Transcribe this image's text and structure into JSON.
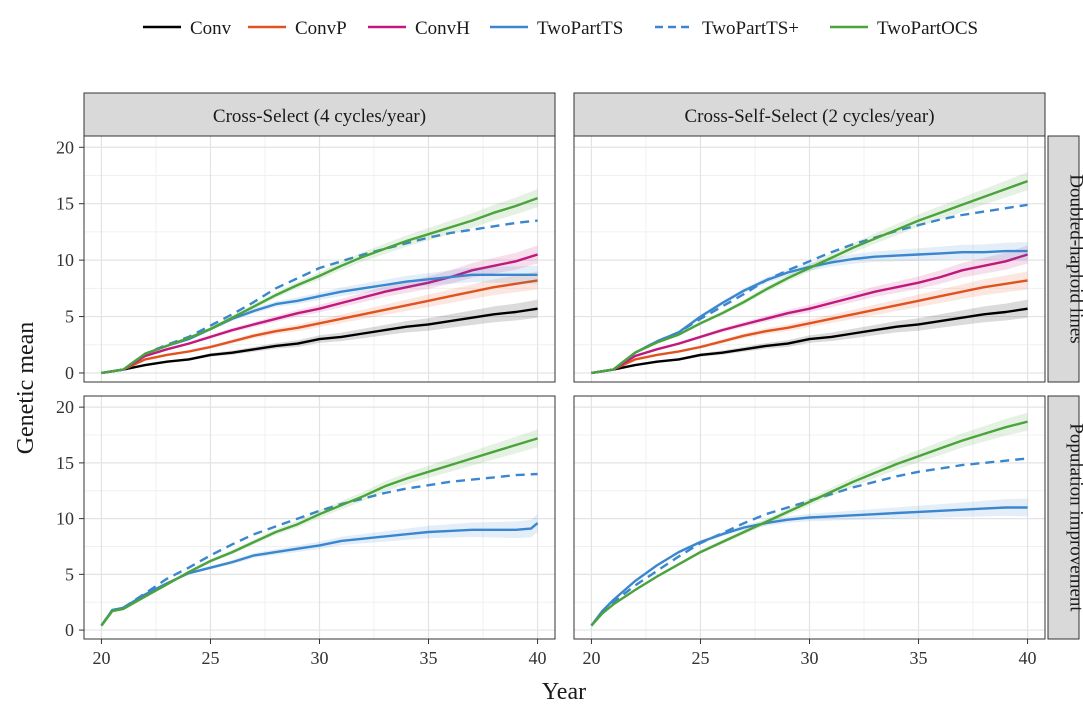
{
  "chart_data": {
    "type": "line",
    "xlabel": "Year",
    "ylabel": "Genetic mean",
    "xlim": [
      19.2,
      40.8
    ],
    "ylim": [
      -0.8,
      21
    ],
    "xticks": [
      20,
      25,
      30,
      35,
      40
    ],
    "yticks": [
      0,
      5,
      10,
      15,
      20
    ],
    "grid": true,
    "legend_position": "top",
    "columns": [
      "Cross-Select (4 cycles/year)",
      "Cross-Self-Select (2 cycles/year)"
    ],
    "rows": [
      "Doubled-haploid lines",
      "Population improvement"
    ],
    "series_styles": [
      {
        "name": "Conv",
        "color": "#000000",
        "dash": "solid"
      },
      {
        "name": "ConvP",
        "color": "#e0521f",
        "dash": "solid"
      },
      {
        "name": "ConvH",
        "color": "#c2187d",
        "dash": "solid"
      },
      {
        "name": "TwoPartTS",
        "color": "#3a86cf",
        "dash": "solid"
      },
      {
        "name": "TwoPartTS+",
        "color": "#3a86cf",
        "dash": "dashed"
      },
      {
        "name": "TwoPartOCS",
        "color": "#4aa33b",
        "dash": "solid"
      }
    ],
    "panels": [
      {
        "column": "Cross-Select (4 cycles/year)",
        "row": "Doubled-haploid lines",
        "series": [
          {
            "name": "Conv",
            "x": [
              20,
              21,
              22,
              23,
              24,
              25,
              26,
              27,
              28,
              29,
              30,
              31,
              32,
              33,
              34,
              35,
              36,
              37,
              38,
              39,
              40
            ],
            "y": [
              0,
              0.3,
              0.7,
              1.0,
              1.2,
              1.6,
              1.8,
              2.1,
              2.4,
              2.6,
              3.0,
              3.2,
              3.5,
              3.8,
              4.1,
              4.3,
              4.6,
              4.9,
              5.2,
              5.4,
              5.7
            ]
          },
          {
            "name": "ConvP",
            "x": [
              20,
              21,
              22,
              23,
              24,
              25,
              26,
              27,
              28,
              29,
              30,
              31,
              32,
              33,
              34,
              35,
              36,
              37,
              38,
              39,
              40
            ],
            "y": [
              0,
              0.3,
              1.2,
              1.6,
              1.9,
              2.3,
              2.8,
              3.3,
              3.7,
              4.0,
              4.4,
              4.8,
              5.2,
              5.6,
              6.0,
              6.4,
              6.8,
              7.2,
              7.6,
              7.9,
              8.2
            ]
          },
          {
            "name": "ConvH",
            "x": [
              20,
              21,
              22,
              23,
              24,
              25,
              26,
              27,
              28,
              29,
              30,
              31,
              32,
              33,
              34,
              35,
              36,
              37,
              38,
              39,
              40
            ],
            "y": [
              0,
              0.3,
              1.5,
              2.1,
              2.6,
              3.2,
              3.8,
              4.3,
              4.8,
              5.3,
              5.7,
              6.2,
              6.7,
              7.2,
              7.6,
              8.0,
              8.5,
              9.1,
              9.5,
              9.9,
              10.5
            ]
          },
          {
            "name": "TwoPartTS",
            "x": [
              20,
              21,
              22,
              23,
              24,
              25,
              26,
              27,
              28,
              29,
              30,
              31,
              32,
              33,
              34,
              35,
              36,
              37,
              38,
              39,
              40
            ],
            "y": [
              0,
              0.3,
              1.7,
              2.4,
              3.0,
              3.9,
              4.8,
              5.5,
              6.1,
              6.4,
              6.8,
              7.2,
              7.5,
              7.8,
              8.1,
              8.3,
              8.5,
              8.7,
              8.7,
              8.7,
              8.7
            ]
          },
          {
            "name": "TwoPartTS+",
            "x": [
              20,
              21,
              22,
              23,
              24,
              25,
              26,
              27,
              28,
              29,
              30,
              31,
              32,
              33,
              34,
              35,
              36,
              37,
              38,
              39,
              40
            ],
            "y": [
              0,
              0.3,
              1.7,
              2.5,
              3.2,
              4.2,
              5.2,
              6.3,
              7.5,
              8.4,
              9.3,
              9.9,
              10.5,
              11.0,
              11.5,
              12.0,
              12.4,
              12.7,
              13.0,
              13.3,
              13.5
            ]
          },
          {
            "name": "TwoPartOCS",
            "x": [
              20,
              21,
              22,
              23,
              24,
              25,
              26,
              27,
              28,
              29,
              30,
              31,
              32,
              33,
              34,
              35,
              36,
              37,
              38,
              39,
              40
            ],
            "y": [
              0,
              0.3,
              1.7,
              2.4,
              3.1,
              3.9,
              4.9,
              5.9,
              6.9,
              7.8,
              8.6,
              9.5,
              10.3,
              11.0,
              11.7,
              12.3,
              12.9,
              13.5,
              14.2,
              14.8,
              15.5
            ]
          }
        ]
      },
      {
        "column": "Cross-Self-Select (2 cycles/year)",
        "row": "Doubled-haploid lines",
        "series": [
          {
            "name": "Conv",
            "x": [
              20,
              21,
              22,
              23,
              24,
              25,
              26,
              27,
              28,
              29,
              30,
              31,
              32,
              33,
              34,
              35,
              36,
              37,
              38,
              39,
              40
            ],
            "y": [
              0,
              0.3,
              0.7,
              1.0,
              1.2,
              1.6,
              1.8,
              2.1,
              2.4,
              2.6,
              3.0,
              3.2,
              3.5,
              3.8,
              4.1,
              4.3,
              4.6,
              4.9,
              5.2,
              5.4,
              5.7
            ]
          },
          {
            "name": "ConvP",
            "x": [
              20,
              21,
              22,
              23,
              24,
              25,
              26,
              27,
              28,
              29,
              30,
              31,
              32,
              33,
              34,
              35,
              36,
              37,
              38,
              39,
              40
            ],
            "y": [
              0,
              0.3,
              1.2,
              1.6,
              1.9,
              2.3,
              2.8,
              3.3,
              3.7,
              4.0,
              4.4,
              4.8,
              5.2,
              5.6,
              6.0,
              6.4,
              6.8,
              7.2,
              7.6,
              7.9,
              8.2
            ]
          },
          {
            "name": "ConvH",
            "x": [
              20,
              21,
              22,
              23,
              24,
              25,
              26,
              27,
              28,
              29,
              30,
              31,
              32,
              33,
              34,
              35,
              36,
              37,
              38,
              39,
              40
            ],
            "y": [
              0,
              0.3,
              1.5,
              2.1,
              2.6,
              3.2,
              3.8,
              4.3,
              4.8,
              5.3,
              5.7,
              6.2,
              6.7,
              7.2,
              7.6,
              8.0,
              8.5,
              9.1,
              9.5,
              9.9,
              10.5
            ]
          },
          {
            "name": "TwoPartTS",
            "x": [
              20,
              21,
              22,
              23,
              24,
              25,
              26,
              27,
              28,
              29,
              30,
              31,
              32,
              33,
              34,
              35,
              36,
              37,
              38,
              39,
              40
            ],
            "y": [
              0,
              0.3,
              1.8,
              2.8,
              3.6,
              5.0,
              6.2,
              7.3,
              8.2,
              8.9,
              9.4,
              9.8,
              10.1,
              10.3,
              10.4,
              10.5,
              10.6,
              10.7,
              10.7,
              10.8,
              10.8
            ]
          },
          {
            "name": "TwoPartTS+",
            "x": [
              20,
              21,
              22,
              23,
              24,
              25,
              26,
              27,
              28,
              29,
              30,
              31,
              32,
              33,
              34,
              35,
              36,
              37,
              38,
              39,
              40
            ],
            "y": [
              0,
              0.3,
              1.8,
              2.8,
              3.6,
              4.8,
              5.9,
              7.0,
              8.2,
              9.1,
              9.9,
              10.7,
              11.4,
              12.0,
              12.6,
              13.1,
              13.6,
              14.0,
              14.3,
              14.6,
              14.9
            ]
          },
          {
            "name": "TwoPartOCS",
            "x": [
              20,
              21,
              22,
              23,
              24,
              25,
              26,
              27,
              28,
              29,
              30,
              31,
              32,
              33,
              34,
              35,
              36,
              37,
              38,
              39,
              40
            ],
            "y": [
              0,
              0.3,
              1.8,
              2.7,
              3.4,
              4.4,
              5.3,
              6.3,
              7.4,
              8.4,
              9.3,
              10.2,
              11.1,
              11.9,
              12.7,
              13.5,
              14.2,
              14.9,
              15.6,
              16.3,
              17.0
            ]
          }
        ]
      },
      {
        "column": "Cross-Select (4 cycles/year)",
        "row": "Population improvement",
        "series": [
          {
            "name": "TwoPartTS",
            "x": [
              20,
              20.5,
              21,
              22,
              23,
              24,
              25,
              26,
              27,
              28,
              29,
              30,
              31,
              32,
              33,
              34,
              35,
              36,
              37,
              38,
              39,
              39.7,
              40
            ],
            "y": [
              0.4,
              1.8,
              2.0,
              3.2,
              4.2,
              5.1,
              5.6,
              6.1,
              6.7,
              7.0,
              7.3,
              7.6,
              8.0,
              8.2,
              8.4,
              8.6,
              8.8,
              8.9,
              9.0,
              9.0,
              9.0,
              9.1,
              9.6
            ]
          },
          {
            "name": "TwoPartTS+",
            "x": [
              20,
              20.5,
              21,
              22,
              23,
              24,
              25,
              26,
              27,
              28,
              29,
              30,
              31,
              32,
              33,
              34,
              35,
              36,
              37,
              38,
              39,
              40
            ],
            "y": [
              0.4,
              1.8,
              2.0,
              3.3,
              4.6,
              5.6,
              6.7,
              7.7,
              8.6,
              9.3,
              10.0,
              10.7,
              11.3,
              11.8,
              12.3,
              12.7,
              13.0,
              13.3,
              13.5,
              13.7,
              13.9,
              14.0
            ]
          },
          {
            "name": "TwoPartOCS",
            "x": [
              20,
              20.5,
              21,
              22,
              23,
              24,
              25,
              26,
              27,
              28,
              29,
              30,
              31,
              32,
              33,
              34,
              35,
              36,
              37,
              38,
              39,
              40
            ],
            "y": [
              0.4,
              1.7,
              1.9,
              3.0,
              4.1,
              5.2,
              6.2,
              7.0,
              7.9,
              8.8,
              9.5,
              10.4,
              11.2,
              12.0,
              12.9,
              13.6,
              14.2,
              14.8,
              15.4,
              16.0,
              16.6,
              17.2
            ]
          }
        ]
      },
      {
        "column": "Cross-Self-Select (2 cycles/year)",
        "row": "Population improvement",
        "series": [
          {
            "name": "TwoPartTS",
            "x": [
              20,
              20.5,
              21,
              22,
              23,
              24,
              25,
              26,
              27,
              28,
              29,
              30,
              31,
              32,
              33,
              34,
              35,
              36,
              37,
              38,
              39,
              40
            ],
            "y": [
              0.4,
              1.7,
              2.7,
              4.4,
              5.8,
              7.0,
              7.9,
              8.6,
              9.2,
              9.6,
              9.9,
              10.1,
              10.2,
              10.3,
              10.4,
              10.5,
              10.6,
              10.7,
              10.8,
              10.9,
              11.0,
              11.0
            ]
          },
          {
            "name": "TwoPartTS+",
            "x": [
              20,
              20.5,
              21,
              22,
              23,
              24,
              25,
              26,
              27,
              28,
              29,
              30,
              31,
              32,
              33,
              34,
              35,
              36,
              37,
              38,
              39,
              40
            ],
            "y": [
              0.4,
              1.6,
              2.5,
              4.0,
              5.3,
              6.6,
              7.8,
              8.7,
              9.6,
              10.4,
              11.0,
              11.6,
              12.2,
              12.8,
              13.3,
              13.8,
              14.2,
              14.5,
              14.8,
              15.0,
              15.2,
              15.4
            ]
          },
          {
            "name": "TwoPartOCS",
            "x": [
              20,
              20.5,
              21,
              22,
              23,
              24,
              25,
              26,
              27,
              28,
              29,
              30,
              31,
              32,
              33,
              34,
              35,
              36,
              37,
              38,
              39,
              40
            ],
            "y": [
              0.4,
              1.5,
              2.3,
              3.6,
              4.8,
              5.9,
              7.0,
              7.9,
              8.8,
              9.7,
              10.6,
              11.5,
              12.4,
              13.3,
              14.1,
              14.9,
              15.6,
              16.3,
              17.0,
              17.6,
              18.2,
              18.7
            ]
          }
        ]
      }
    ]
  }
}
